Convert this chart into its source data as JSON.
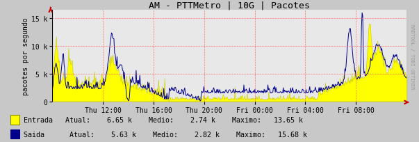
{
  "title": "AM - PTTMetro | 10G | Pacotes",
  "ylabel": "pacotes por segundo",
  "bg_color": "#c8c8c8",
  "plot_bg_color": "#e8e8e8",
  "grid_color": "#ff6666",
  "yticks": [
    0,
    5000,
    10000,
    15000
  ],
  "ytick_labels": [
    "0",
    "5 k",
    "10 k",
    "15 k"
  ],
  "ylim_max": 16500,
  "xtick_labels": [
    "Thu 12:00",
    "Thu 16:00",
    "Thu 20:00",
    "Fri 00:00",
    "Fri 04:00",
    "Fri 08:00"
  ],
  "entrada_color": "#ffff00",
  "saida_color": "#00008b",
  "entrada_edge_color": "#c8c800",
  "watermark": "RRDTOOL / TOBI OETIKER",
  "arrow_color": "#cc0000",
  "n_points": 576,
  "legend_line1": "Entrada   Atual:    6.65 k    Medio:    2.74 k    Maximo:   13.65 k",
  "legend_line2": "Saida      Atual:    5.63 k    Medio:    2.82 k    Maximo:   15.68 k"
}
